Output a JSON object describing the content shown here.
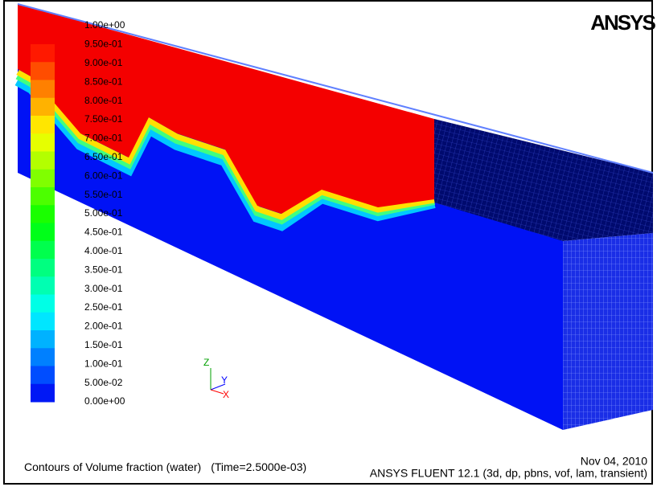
{
  "logo": "ANSYS",
  "legend": {
    "labels": [
      "1.00e+00",
      "9.50e-01",
      "9.00e-01",
      "8.50e-01",
      "8.00e-01",
      "7.50e-01",
      "7.00e-01",
      "6.50e-01",
      "6.00e-01",
      "5.50e-01",
      "5.00e-01",
      "4.50e-01",
      "4.00e-01",
      "3.50e-01",
      "3.00e-01",
      "2.50e-01",
      "2.00e-01",
      "1.50e-01",
      "1.00e-01",
      "5.00e-02",
      "0.00e+00"
    ]
  },
  "axes": {
    "z": "Z",
    "y": "Y",
    "x": "X"
  },
  "footer": {
    "title": "Contours of Volume fraction (water)",
    "time": "(Time=2.5000e-03)",
    "date": "Nov 04, 2010",
    "software": "ANSYS FLUENT 12.1 (3d, dp, pbns, vof, lam, transient)"
  }
}
